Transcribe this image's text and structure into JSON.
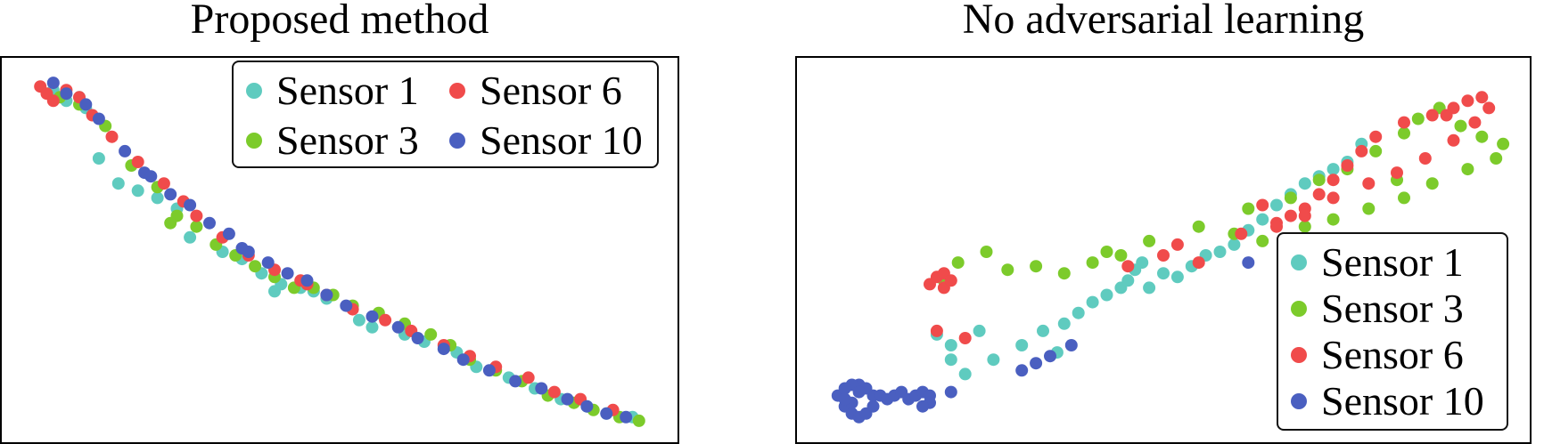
{
  "chart_data": [
    {
      "type": "scatter",
      "title": "Proposed method",
      "xlabel": "",
      "ylabel": "",
      "grid": false,
      "legend": {
        "placement": "top-right",
        "columns": 2
      },
      "series": [
        {
          "name": "Sensor 1",
          "color": "#5fcbbf",
          "points": [
            [
              0.06,
              0.95
            ],
            [
              0.08,
              0.92
            ],
            [
              0.11,
              0.9
            ],
            [
              0.13,
              0.76
            ],
            [
              0.16,
              0.69
            ],
            [
              0.19,
              0.67
            ],
            [
              0.22,
              0.65
            ],
            [
              0.25,
              0.62
            ],
            [
              0.27,
              0.54
            ],
            [
              0.32,
              0.5
            ],
            [
              0.35,
              0.48
            ],
            [
              0.38,
              0.44
            ],
            [
              0.41,
              0.41
            ],
            [
              0.44,
              0.4
            ],
            [
              0.46,
              0.39
            ],
            [
              0.48,
              0.37
            ],
            [
              0.53,
              0.31
            ],
            [
              0.55,
              0.29
            ],
            [
              0.6,
              0.27
            ],
            [
              0.63,
              0.25
            ],
            [
              0.68,
              0.22
            ],
            [
              0.71,
              0.18
            ],
            [
              0.76,
              0.15
            ],
            [
              0.8,
              0.12
            ],
            [
              0.84,
              0.09
            ],
            [
              0.88,
              0.07
            ],
            [
              0.91,
              0.05
            ],
            [
              0.95,
              0.04
            ],
            [
              0.4,
              0.39
            ],
            [
              0.1,
              0.93
            ]
          ]
        },
        {
          "name": "Sensor 3",
          "color": "#7ccb2b",
          "points": [
            [
              0.07,
              0.93
            ],
            [
              0.1,
              0.91
            ],
            [
              0.14,
              0.85
            ],
            [
              0.18,
              0.74
            ],
            [
              0.22,
              0.68
            ],
            [
              0.25,
              0.6
            ],
            [
              0.28,
              0.57
            ],
            [
              0.31,
              0.52
            ],
            [
              0.34,
              0.49
            ],
            [
              0.37,
              0.46
            ],
            [
              0.4,
              0.43
            ],
            [
              0.43,
              0.4
            ],
            [
              0.46,
              0.4
            ],
            [
              0.49,
              0.38
            ],
            [
              0.52,
              0.35
            ],
            [
              0.56,
              0.33
            ],
            [
              0.6,
              0.3
            ],
            [
              0.64,
              0.27
            ],
            [
              0.67,
              0.24
            ],
            [
              0.7,
              0.2
            ],
            [
              0.74,
              0.17
            ],
            [
              0.78,
              0.14
            ],
            [
              0.82,
              0.1
            ],
            [
              0.86,
              0.08
            ],
            [
              0.89,
              0.06
            ],
            [
              0.93,
              0.04
            ],
            [
              0.96,
              0.03
            ],
            [
              0.24,
              0.58
            ]
          ]
        },
        {
          "name": "Sensor 6",
          "color": "#f04b4b",
          "points": [
            [
              0.04,
              0.96
            ],
            [
              0.05,
              0.94
            ],
            [
              0.06,
              0.92
            ],
            [
              0.08,
              0.95
            ],
            [
              0.1,
              0.93
            ],
            [
              0.12,
              0.88
            ],
            [
              0.15,
              0.82
            ],
            [
              0.19,
              0.75
            ],
            [
              0.23,
              0.69
            ],
            [
              0.28,
              0.6
            ],
            [
              0.32,
              0.54
            ],
            [
              0.36,
              0.49
            ],
            [
              0.4,
              0.45
            ],
            [
              0.44,
              0.42
            ],
            [
              0.48,
              0.38
            ],
            [
              0.52,
              0.34
            ],
            [
              0.57,
              0.31
            ],
            [
              0.61,
              0.28
            ],
            [
              0.66,
              0.24
            ],
            [
              0.7,
              0.21
            ],
            [
              0.74,
              0.18
            ],
            [
              0.79,
              0.15
            ],
            [
              0.83,
              0.11
            ],
            [
              0.87,
              0.09
            ],
            [
              0.92,
              0.06
            ],
            [
              0.26,
              0.64
            ],
            [
              0.45,
              0.41
            ]
          ]
        },
        {
          "name": "Sensor 10",
          "color": "#4a5fc0",
          "points": [
            [
              0.06,
              0.97
            ],
            [
              0.08,
              0.94
            ],
            [
              0.11,
              0.91
            ],
            [
              0.13,
              0.87
            ],
            [
              0.17,
              0.78
            ],
            [
              0.2,
              0.72
            ],
            [
              0.24,
              0.66
            ],
            [
              0.27,
              0.63
            ],
            [
              0.3,
              0.58
            ],
            [
              0.33,
              0.55
            ],
            [
              0.36,
              0.5
            ],
            [
              0.39,
              0.47
            ],
            [
              0.42,
              0.44
            ],
            [
              0.45,
              0.42
            ],
            [
              0.48,
              0.38
            ],
            [
              0.51,
              0.35
            ],
            [
              0.55,
              0.32
            ],
            [
              0.59,
              0.29
            ],
            [
              0.62,
              0.26
            ],
            [
              0.66,
              0.23
            ],
            [
              0.69,
              0.2
            ],
            [
              0.73,
              0.17
            ],
            [
              0.77,
              0.14
            ],
            [
              0.81,
              0.12
            ],
            [
              0.85,
              0.09
            ],
            [
              0.88,
              0.07
            ],
            [
              0.91,
              0.05
            ],
            [
              0.94,
              0.04
            ],
            [
              0.21,
              0.71
            ],
            [
              0.35,
              0.51
            ]
          ]
        }
      ]
    },
    {
      "type": "scatter",
      "title": "No adversarial learning",
      "xlabel": "",
      "ylabel": "",
      "grid": false,
      "legend": {
        "placement": "bottom-right",
        "columns": 1
      },
      "series": [
        {
          "name": "Sensor 1",
          "color": "#5fcbbf",
          "points": [
            [
              0.18,
              0.27
            ],
            [
              0.2,
              0.24
            ],
            [
              0.22,
              0.16
            ],
            [
              0.26,
              0.2
            ],
            [
              0.3,
              0.24
            ],
            [
              0.33,
              0.28
            ],
            [
              0.36,
              0.3
            ],
            [
              0.38,
              0.33
            ],
            [
              0.4,
              0.36
            ],
            [
              0.42,
              0.38
            ],
            [
              0.44,
              0.4
            ],
            [
              0.45,
              0.42
            ],
            [
              0.46,
              0.45
            ],
            [
              0.47,
              0.47
            ],
            [
              0.48,
              0.4
            ],
            [
              0.5,
              0.44
            ],
            [
              0.52,
              0.43
            ],
            [
              0.54,
              0.46
            ],
            [
              0.56,
              0.49
            ],
            [
              0.58,
              0.5
            ],
            [
              0.6,
              0.52
            ],
            [
              0.62,
              0.56
            ],
            [
              0.64,
              0.59
            ],
            [
              0.66,
              0.63
            ],
            [
              0.68,
              0.66
            ],
            [
              0.7,
              0.69
            ],
            [
              0.72,
              0.71
            ],
            [
              0.74,
              0.73
            ],
            [
              0.76,
              0.75
            ],
            [
              0.78,
              0.8
            ],
            [
              0.24,
              0.28
            ],
            [
              0.2,
              0.2
            ],
            [
              0.35,
              0.22
            ]
          ]
        },
        {
          "name": "Sensor 3",
          "color": "#7ccb2b",
          "points": [
            [
              0.19,
              0.42
            ],
            [
              0.21,
              0.47
            ],
            [
              0.25,
              0.5
            ],
            [
              0.28,
              0.45
            ],
            [
              0.32,
              0.46
            ],
            [
              0.36,
              0.44
            ],
            [
              0.4,
              0.47
            ],
            [
              0.44,
              0.49
            ],
            [
              0.48,
              0.53
            ],
            [
              0.55,
              0.57
            ],
            [
              0.62,
              0.62
            ],
            [
              0.68,
              0.65
            ],
            [
              0.72,
              0.7
            ],
            [
              0.76,
              0.73
            ],
            [
              0.8,
              0.78
            ],
            [
              0.84,
              0.83
            ],
            [
              0.86,
              0.87
            ],
            [
              0.89,
              0.9
            ],
            [
              0.92,
              0.85
            ],
            [
              0.95,
              0.82
            ],
            [
              0.98,
              0.8
            ],
            [
              0.97,
              0.76
            ],
            [
              0.93,
              0.73
            ],
            [
              0.88,
              0.69
            ],
            [
              0.84,
              0.65
            ],
            [
              0.79,
              0.62
            ],
            [
              0.74,
              0.59
            ],
            [
              0.7,
              0.57
            ],
            [
              0.64,
              0.53
            ],
            [
              0.6,
              0.55
            ],
            [
              0.42,
              0.5
            ],
            [
              0.83,
              0.7
            ]
          ]
        },
        {
          "name": "Sensor 6",
          "color": "#f04b4b",
          "points": [
            [
              0.17,
              0.41
            ],
            [
              0.18,
              0.43
            ],
            [
              0.19,
              0.44
            ],
            [
              0.19,
              0.4
            ],
            [
              0.2,
              0.42
            ],
            [
              0.18,
              0.28
            ],
            [
              0.22,
              0.26
            ],
            [
              0.45,
              0.46
            ],
            [
              0.5,
              0.49
            ],
            [
              0.52,
              0.52
            ],
            [
              0.61,
              0.55
            ],
            [
              0.66,
              0.58
            ],
            [
              0.68,
              0.6
            ],
            [
              0.7,
              0.62
            ],
            [
              0.72,
              0.66
            ],
            [
              0.74,
              0.7
            ],
            [
              0.76,
              0.74
            ],
            [
              0.78,
              0.78
            ],
            [
              0.8,
              0.82
            ],
            [
              0.84,
              0.86
            ],
            [
              0.88,
              0.88
            ],
            [
              0.91,
              0.9
            ],
            [
              0.93,
              0.92
            ],
            [
              0.95,
              0.93
            ],
            [
              0.96,
              0.9
            ],
            [
              0.94,
              0.86
            ],
            [
              0.91,
              0.81
            ],
            [
              0.87,
              0.76
            ],
            [
              0.83,
              0.72
            ],
            [
              0.79,
              0.69
            ],
            [
              0.74,
              0.65
            ],
            [
              0.7,
              0.6
            ],
            [
              0.66,
              0.57
            ],
            [
              0.64,
              0.63
            ],
            [
              0.9,
              0.88
            ],
            [
              0.55,
              0.47
            ]
          ]
        },
        {
          "name": "Sensor 10",
          "color": "#4a5fc0",
          "points": [
            [
              0.04,
              0.1
            ],
            [
              0.05,
              0.07
            ],
            [
              0.06,
              0.05
            ],
            [
              0.07,
              0.04
            ],
            [
              0.08,
              0.05
            ],
            [
              0.09,
              0.07
            ],
            [
              0.09,
              0.1
            ],
            [
              0.08,
              0.12
            ],
            [
              0.07,
              0.13
            ],
            [
              0.06,
              0.13
            ],
            [
              0.05,
              0.12
            ],
            [
              0.1,
              0.1
            ],
            [
              0.11,
              0.09
            ],
            [
              0.12,
              0.1
            ],
            [
              0.13,
              0.11
            ],
            [
              0.14,
              0.09
            ],
            [
              0.15,
              0.1
            ],
            [
              0.16,
              0.11
            ],
            [
              0.17,
              0.1
            ],
            [
              0.17,
              0.08
            ],
            [
              0.16,
              0.07
            ],
            [
              0.2,
              0.11
            ],
            [
              0.3,
              0.17
            ],
            [
              0.32,
              0.19
            ],
            [
              0.34,
              0.21
            ],
            [
              0.37,
              0.24
            ],
            [
              0.06,
              0.08
            ],
            [
              0.07,
              0.11
            ],
            [
              0.05,
              0.09
            ],
            [
              0.62,
              0.47
            ]
          ]
        }
      ]
    }
  ]
}
